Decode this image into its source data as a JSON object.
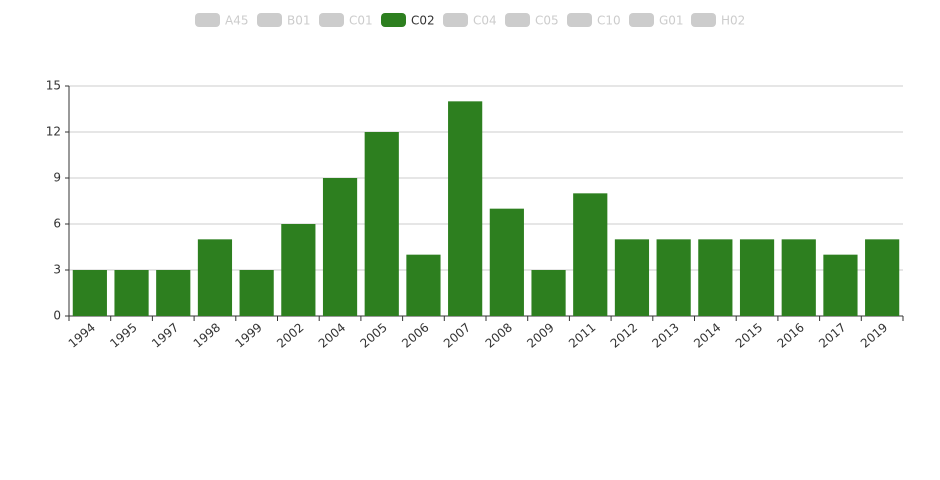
{
  "chart_data": {
    "type": "bar",
    "legend": [
      {
        "name": "A45",
        "selected": false
      },
      {
        "name": "B01",
        "selected": false
      },
      {
        "name": "C01",
        "selected": false
      },
      {
        "name": "C02",
        "selected": true
      },
      {
        "name": "C04",
        "selected": false
      },
      {
        "name": "C05",
        "selected": false
      },
      {
        "name": "C10",
        "selected": false
      },
      {
        "name": "G01",
        "selected": false
      },
      {
        "name": "H02",
        "selected": false
      }
    ],
    "categories": [
      "1994",
      "1995",
      "1997",
      "1998",
      "1999",
      "2002",
      "2004",
      "2005",
      "2006",
      "2007",
      "2008",
      "2009",
      "2011",
      "2012",
      "2013",
      "2014",
      "2015",
      "2016",
      "2017",
      "2019"
    ],
    "series": [
      {
        "name": "C02",
        "color": "#2d7f1f",
        "values": [
          3,
          3,
          3,
          5,
          3,
          6,
          9,
          12,
          4,
          14,
          7,
          3,
          8,
          5,
          5,
          5,
          5,
          5,
          4,
          5
        ]
      }
    ],
    "ylim": [
      0,
      15
    ],
    "yticks": [
      0,
      3,
      6,
      9,
      12,
      15
    ],
    "grid": true
  }
}
